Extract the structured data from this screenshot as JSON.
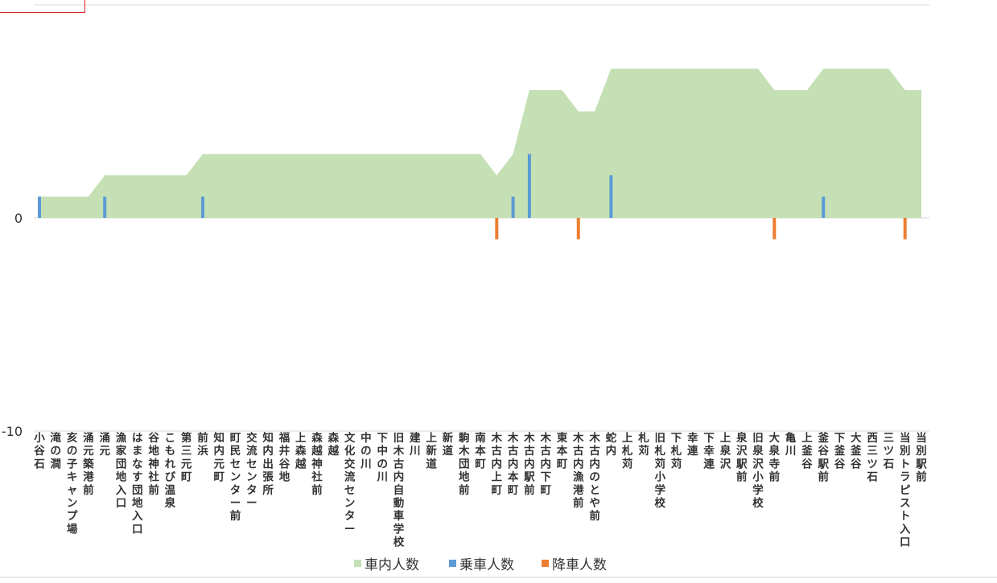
{
  "chart_data": {
    "type": "area",
    "title": "",
    "xlabel": "",
    "ylabel": "",
    "ylim": [
      -10,
      10
    ],
    "yticks": [
      0,
      -10
    ],
    "categories": [
      "小谷石",
      "滝の澗",
      "亥の子キャンプ場",
      "涌元築港前",
      "涌元",
      "漁家団地入口",
      "はまなす団地入口",
      "谷地神社前",
      "こもれび温泉",
      "第三元町",
      "前浜",
      "知内元町",
      "町民センター前",
      "交流センター",
      "知内出張所",
      "福井谷地",
      "上森越",
      "森越神社前",
      "森越",
      "文化交流センター",
      "中の川",
      "下中の川",
      "旧木古内自動車学校",
      "建川",
      "上新道",
      "新道",
      "駒木団地前",
      "南本町",
      "木古内上町",
      "木古内本町",
      "木古内駅前",
      "木古内下町",
      "東本町",
      "木古内漁港前",
      "木古内のとや前",
      "蛇内",
      "上札苅",
      "札苅",
      "旧札苅小学校",
      "下札苅",
      "幸連",
      "下幸連",
      "上泉沢",
      "泉沢駅前",
      "旧泉沢小学校",
      "大泉寺前",
      "亀川",
      "上釜谷",
      "釜谷駅前",
      "下釜谷",
      "大釜谷",
      "西三ツ石",
      "三ツ石",
      "当別トラピスト入口",
      "当別駅前"
    ],
    "series": [
      {
        "name": "車内人数",
        "color": "#c5e0b4",
        "values": [
          1,
          1,
          1,
          1,
          2,
          2,
          2,
          2,
          2,
          2,
          3,
          3,
          3,
          3,
          3,
          3,
          3,
          3,
          3,
          3,
          3,
          3,
          3,
          3,
          3,
          3,
          3,
          3,
          2,
          3,
          6,
          6,
          6,
          5,
          5,
          7,
          7,
          7,
          7,
          7,
          7,
          7,
          7,
          7,
          7,
          6,
          6,
          6,
          7,
          7,
          7,
          7,
          7,
          6,
          6
        ]
      },
      {
        "name": "乗車人数",
        "color": "#5b9bd5",
        "values": [
          1,
          0,
          0,
          0,
          1,
          0,
          0,
          0,
          0,
          0,
          1,
          0,
          0,
          0,
          0,
          0,
          0,
          0,
          0,
          0,
          0,
          0,
          0,
          0,
          0,
          0,
          0,
          0,
          0,
          1,
          3,
          0,
          0,
          0,
          0,
          2,
          0,
          0,
          0,
          0,
          0,
          0,
          0,
          0,
          0,
          0,
          0,
          0,
          1,
          0,
          0,
          0,
          0,
          0,
          0
        ]
      },
      {
        "name": "降車人数",
        "color": "#ed7d31",
        "values": [
          0,
          0,
          0,
          0,
          0,
          0,
          0,
          0,
          0,
          0,
          0,
          0,
          0,
          0,
          0,
          0,
          0,
          0,
          0,
          0,
          0,
          0,
          0,
          0,
          0,
          0,
          0,
          0,
          -1,
          0,
          0,
          0,
          0,
          -1,
          0,
          0,
          0,
          0,
          0,
          0,
          0,
          0,
          0,
          0,
          0,
          -1,
          0,
          0,
          0,
          0,
          0,
          0,
          0,
          -1,
          0
        ]
      }
    ],
    "legend_position": "bottom",
    "grid": true
  }
}
